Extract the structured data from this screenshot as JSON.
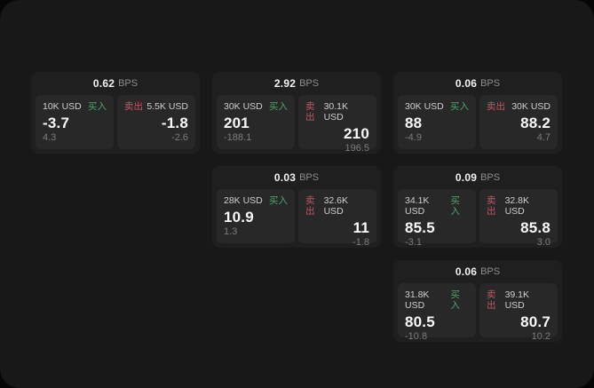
{
  "labels": {
    "bps_unit": "BPS",
    "buy": "买入",
    "sell": "卖出"
  },
  "colors": {
    "buy_green": "#4ea36a",
    "sell_red": "#c25663",
    "frame_bg": "#181818",
    "card_bg": "#1f1f1f",
    "panel_bg": "#282828"
  },
  "cards": [
    {
      "bps": "0.62",
      "col": 0,
      "row": 0,
      "buy": {
        "amount": "10K USD",
        "value": "-3.7",
        "delta": "4.3"
      },
      "sell": {
        "amount": "5.5K USD",
        "value": "-1.8",
        "delta": "-2.6"
      }
    },
    {
      "bps": "2.92",
      "col": 1,
      "row": 0,
      "buy": {
        "amount": "30K USD",
        "value": "201",
        "delta": "-188.1"
      },
      "sell": {
        "amount": "30.1K USD",
        "value": "210",
        "delta": "196.5"
      }
    },
    {
      "bps": "0.06",
      "col": 2,
      "row": 0,
      "buy": {
        "amount": "30K USD",
        "value": "88",
        "delta": "-4.9"
      },
      "sell": {
        "amount": "30K USD",
        "value": "88.2",
        "delta": "4.7"
      }
    },
    {
      "bps": "0.03",
      "col": 1,
      "row": 1,
      "buy": {
        "amount": "28K USD",
        "value": "10.9",
        "delta": "1.3"
      },
      "sell": {
        "amount": "32.6K USD",
        "value": "11",
        "delta": "-1.8"
      }
    },
    {
      "bps": "0.09",
      "col": 2,
      "row": 1,
      "buy": {
        "amount": "34.1K USD",
        "value": "85.5",
        "delta": "-3.1"
      },
      "sell": {
        "amount": "32.8K USD",
        "value": "85.8",
        "delta": "3.0"
      }
    },
    {
      "bps": "0.06",
      "col": 2,
      "row": 2,
      "buy": {
        "amount": "31.8K USD",
        "value": "80.5",
        "delta": "-10.8"
      },
      "sell": {
        "amount": "39.1K USD",
        "value": "80.7",
        "delta": "10.2"
      }
    }
  ]
}
